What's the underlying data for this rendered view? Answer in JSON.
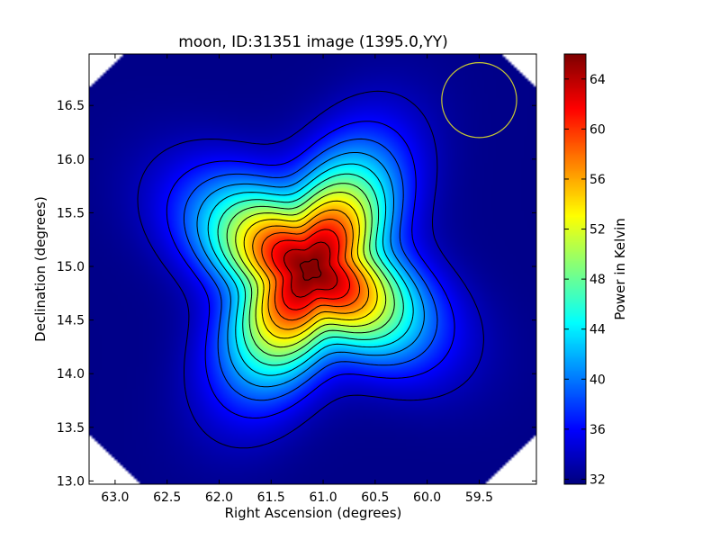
{
  "chart_data": {
    "type": "heatmap",
    "title": "moon, ID:31351 image (1395.0,YY)",
    "xlabel": "Right Ascension (degrees)",
    "ylabel": "Declination (degrees)",
    "colorbar_label": "Power in Kelvin",
    "colormap": "jet",
    "x_inverted": true,
    "xlim": [
      63.25,
      58.95
    ],
    "ylim": [
      12.97,
      16.98
    ],
    "color_range": [
      31.6,
      66.0
    ],
    "x_ticks": [
      {
        "value": 63.0,
        "label": "63.0"
      },
      {
        "value": 62.5,
        "label": "62.5"
      },
      {
        "value": 62.0,
        "label": "62.0"
      },
      {
        "value": 61.5,
        "label": "61.5"
      },
      {
        "value": 61.0,
        "label": "61.0"
      },
      {
        "value": 60.5,
        "label": "60.5"
      },
      {
        "value": 60.0,
        "label": "60.0"
      },
      {
        "value": 59.5,
        "label": "59.5"
      }
    ],
    "y_ticks": [
      {
        "value": 13.0,
        "label": "13.0"
      },
      {
        "value": 13.5,
        "label": "13.5"
      },
      {
        "value": 14.0,
        "label": "14.0"
      },
      {
        "value": 14.5,
        "label": "14.5"
      },
      {
        "value": 15.0,
        "label": "15.0"
      },
      {
        "value": 15.5,
        "label": "15.5"
      },
      {
        "value": 16.0,
        "label": "16.0"
      },
      {
        "value": 16.5,
        "label": "16.5"
      }
    ],
    "colorbar_ticks": [
      {
        "value": 32,
        "label": "32"
      },
      {
        "value": 36,
        "label": "36"
      },
      {
        "value": 40,
        "label": "40"
      },
      {
        "value": 44,
        "label": "44"
      },
      {
        "value": 48,
        "label": "48"
      },
      {
        "value": 52,
        "label": "52"
      },
      {
        "value": 56,
        "label": "56"
      },
      {
        "value": 60,
        "label": "60"
      },
      {
        "value": 64,
        "label": "64"
      }
    ],
    "source": {
      "center_ra": 61.12,
      "center_dec": 14.97,
      "background_level": 31.9,
      "peak_level": 65.9,
      "width_deg": 0.62,
      "lobe_amplitude": 0.2,
      "lobe_angle_deg": 30
    },
    "contour_levels": [
      33.5,
      36,
      38.5,
      41,
      43.5,
      46,
      48.5,
      51,
      53.5,
      56,
      58.5,
      61,
      63.5,
      65.5
    ],
    "contour_color": "#000000",
    "beam_circle": {
      "ra": 59.5,
      "dec": 16.55,
      "radius_deg": 0.36,
      "color": "#c8c832"
    },
    "grid": false
  }
}
